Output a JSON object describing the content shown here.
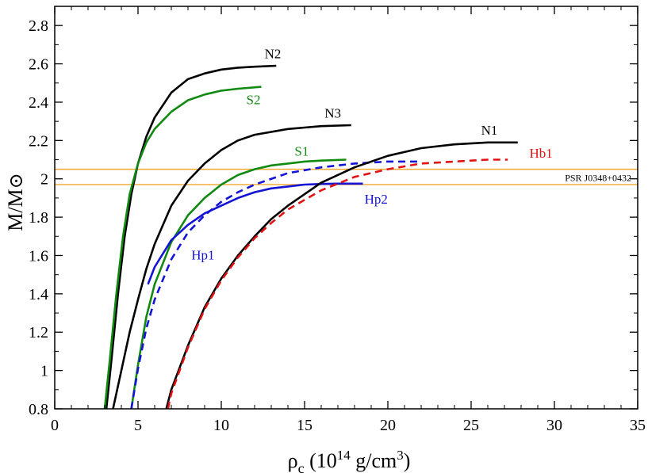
{
  "chart_data": {
    "type": "line",
    "title": "",
    "xlabel": {
      "main": "ρ",
      "sub": "c",
      "mid": " (10",
      "sup1": "14",
      "tail": " g/cm",
      "sup2": "3",
      "close": ")"
    },
    "ylabel": {
      "main": "M/M",
      "sun": "⊙"
    },
    "xlim": [
      0,
      35
    ],
    "ylim": [
      0.8,
      2.9
    ],
    "x_ticks": [
      0,
      5,
      10,
      15,
      20,
      25,
      30,
      35
    ],
    "x_tick_labels": [
      "0",
      "5",
      "10",
      "15",
      "20",
      "25",
      "30",
      "35"
    ],
    "y_ticks": [
      0.8,
      1.0,
      1.2,
      1.4,
      1.6,
      1.8,
      2.0,
      2.2,
      2.4,
      2.6,
      2.8
    ],
    "y_tick_labels": [
      "0.8",
      "1",
      "1.2",
      "1.4",
      "1.6",
      "1.8",
      "2",
      "2.2",
      "2.4",
      "2.6",
      "2.8"
    ],
    "colors": {
      "black": "#000000",
      "green": "#118a11",
      "blue": "#1414d4",
      "red": "#e01414",
      "band": "#f0a830"
    },
    "band": {
      "label": "PSR J0348+0432",
      "y_low": 1.97,
      "y_high": 2.05
    },
    "series": [
      {
        "name": "N2",
        "label": "N2",
        "color": "black",
        "dash": false,
        "label_at": [
          12.6,
          2.63
        ],
        "x": [
          3.1,
          3.4,
          3.8,
          4.2,
          4.6,
          5.0,
          5.5,
          6.0,
          7.0,
          8.0,
          9.0,
          10.0,
          11.0,
          12.0,
          13.3
        ],
        "y": [
          0.8,
          1.05,
          1.4,
          1.7,
          1.92,
          2.08,
          2.22,
          2.32,
          2.45,
          2.52,
          2.55,
          2.57,
          2.58,
          2.585,
          2.59
        ]
      },
      {
        "name": "S2",
        "label": "S2",
        "color": "green",
        "dash": false,
        "label_at": [
          11.5,
          2.39
        ],
        "x": [
          3.0,
          3.3,
          3.7,
          4.1,
          4.5,
          5.0,
          5.5,
          6.0,
          7.0,
          8.0,
          9.0,
          10.0,
          11.0,
          12.4
        ],
        "y": [
          0.8,
          1.05,
          1.4,
          1.7,
          1.92,
          2.08,
          2.19,
          2.26,
          2.35,
          2.41,
          2.44,
          2.46,
          2.47,
          2.48
        ]
      },
      {
        "name": "N3",
        "label": "N3",
        "color": "black",
        "dash": false,
        "label_at": [
          16.2,
          2.32
        ],
        "x": [
          3.5,
          4.0,
          4.5,
          5.0,
          5.5,
          6.0,
          7.0,
          8.0,
          9.0,
          10.0,
          11.0,
          12.0,
          14.0,
          16.0,
          17.8
        ],
        "y": [
          0.8,
          1.0,
          1.2,
          1.37,
          1.53,
          1.66,
          1.86,
          1.99,
          2.08,
          2.15,
          2.2,
          2.23,
          2.26,
          2.275,
          2.28
        ]
      },
      {
        "name": "S1",
        "label": "S1",
        "color": "green",
        "dash": false,
        "label_at": [
          14.4,
          2.12
        ],
        "x": [
          4.6,
          5.0,
          5.5,
          6.0,
          7.0,
          8.0,
          9.0,
          10.0,
          11.0,
          12.0,
          13.0,
          14.0,
          15.0,
          16.0,
          17.5
        ],
        "y": [
          0.8,
          1.03,
          1.28,
          1.45,
          1.67,
          1.81,
          1.9,
          1.97,
          2.02,
          2.05,
          2.07,
          2.08,
          2.09,
          2.095,
          2.1
        ]
      },
      {
        "name": "Hp1",
        "label": "Hp1",
        "color": "blue",
        "dash": true,
        "label_at": [
          8.2,
          1.58
        ],
        "x": [
          4.6,
          5.0,
          5.5,
          6.0,
          7.0,
          8.0,
          9.0,
          10.0,
          11.0,
          12.0,
          14.0,
          16.0,
          18.0,
          20.0,
          22.0
        ],
        "y": [
          0.8,
          1.01,
          1.22,
          1.37,
          1.58,
          1.72,
          1.81,
          1.88,
          1.93,
          1.97,
          2.03,
          2.06,
          2.08,
          2.09,
          2.09
        ]
      },
      {
        "name": "Hp1-solid",
        "label": "",
        "color": "blue",
        "dash": false,
        "label_at": null,
        "x": [
          5.6,
          6.0,
          7.0,
          8.0,
          9.0,
          10.0,
          11.0,
          12.0,
          13.0,
          14.0,
          15.0,
          16.0,
          17.0,
          18.5
        ],
        "y": [
          1.45,
          1.54,
          1.68,
          1.76,
          1.82,
          1.86,
          1.9,
          1.93,
          1.95,
          1.96,
          1.97,
          1.973,
          1.975,
          1.975
        ]
      },
      {
        "name": "Hp2",
        "label": "Hp2",
        "color": "blue",
        "dash": false,
        "label_at": [
          18.6,
          1.87
        ],
        "x": [],
        "y": []
      },
      {
        "name": "N1",
        "label": "N1",
        "color": "black",
        "dash": false,
        "label_at": [
          25.6,
          2.23
        ],
        "x": [
          6.7,
          7.0,
          8.0,
          9.0,
          10.0,
          11.0,
          12.0,
          13.0,
          14.0,
          15.0,
          16.0,
          18.0,
          20.0,
          22.0,
          24.0,
          26.0,
          27.8
        ],
        "y": [
          0.8,
          0.9,
          1.13,
          1.33,
          1.48,
          1.6,
          1.7,
          1.79,
          1.86,
          1.92,
          1.98,
          2.06,
          2.12,
          2.16,
          2.18,
          2.19,
          2.19
        ]
      },
      {
        "name": "Hb1",
        "label": "Hb1",
        "color": "red",
        "dash": true,
        "label_at": [
          28.5,
          2.11
        ],
        "x": [
          6.8,
          7.0,
          8.0,
          9.0,
          10.0,
          11.0,
          12.0,
          13.0,
          14.0,
          15.0,
          16.0,
          18.0,
          20.0,
          22.0,
          24.0,
          26.0,
          27.2
        ],
        "y": [
          0.8,
          0.88,
          1.12,
          1.32,
          1.47,
          1.59,
          1.69,
          1.77,
          1.84,
          1.89,
          1.94,
          2.01,
          2.05,
          2.08,
          2.09,
          2.1,
          2.1
        ]
      }
    ]
  }
}
